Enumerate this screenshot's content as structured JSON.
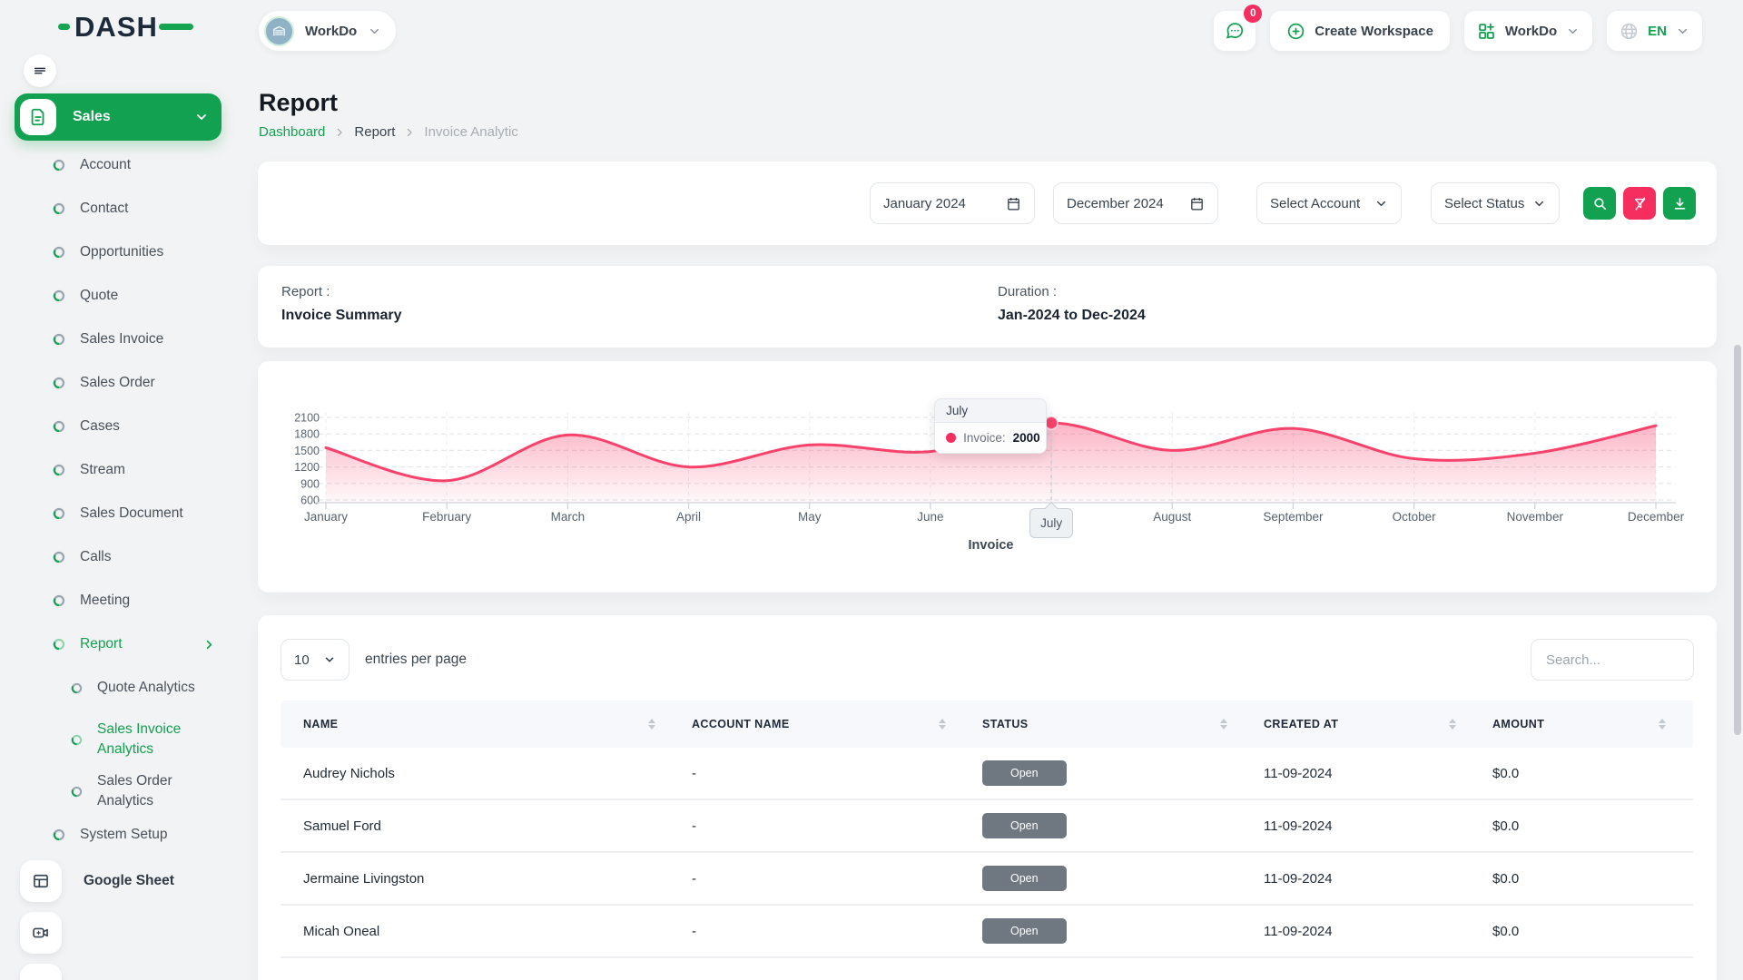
{
  "colors": {
    "primary_green": "#12A150",
    "accent_pink": "#F62E5F",
    "chart_line": "#F7426C",
    "badge_gray": "#6F7780"
  },
  "brand": {
    "name": "DASH"
  },
  "topbar": {
    "workspace_switcher_label": "WorkDo",
    "messages_badge": "0",
    "create_workspace_label": "Create Workspace",
    "workdo_menu_label": "WorkDo",
    "language_label": "EN"
  },
  "sidebar": {
    "group_label": "Sales",
    "items": [
      {
        "label": "Account"
      },
      {
        "label": "Contact"
      },
      {
        "label": "Opportunities"
      },
      {
        "label": "Quote"
      },
      {
        "label": "Sales Invoice"
      },
      {
        "label": "Sales Order"
      },
      {
        "label": "Cases"
      },
      {
        "label": "Stream"
      },
      {
        "label": "Sales Document"
      },
      {
        "label": "Calls"
      },
      {
        "label": "Meeting"
      }
    ],
    "report": {
      "label": "Report",
      "children": [
        {
          "label": "Quote Analytics"
        },
        {
          "label": "Sales Invoice Analytics"
        },
        {
          "label": "Sales Order Analytics"
        }
      ]
    },
    "system_setup_label": "System Setup",
    "footer_items": [
      {
        "label": "Google Sheet"
      },
      {
        "label": "Video Hub"
      }
    ]
  },
  "page": {
    "title": "Report",
    "breadcrumb": {
      "home": "Dashboard",
      "section": "Report",
      "current": "Invoice Analytic"
    }
  },
  "filters": {
    "start_month": "January 2024",
    "end_month": "December 2024",
    "account_select": "Select Account",
    "status_select": "Select Status"
  },
  "summary": {
    "report_label": "Report :",
    "report_value": "Invoice Summary",
    "duration_label": "Duration :",
    "duration_value": "Jan-2024 to Dec-2024"
  },
  "chart_data": {
    "type": "area",
    "title": "Invoice Summary",
    "x": [
      "January",
      "February",
      "March",
      "April",
      "May",
      "June",
      "July",
      "August",
      "September",
      "October",
      "November",
      "December"
    ],
    "series": [
      {
        "name": "Invoice",
        "values": [
          1550,
          950,
          1780,
          1200,
          1600,
          1480,
          2000,
          1500,
          1900,
          1350,
          1450,
          1950
        ]
      }
    ],
    "ylim": [
      600,
      2100
    ],
    "yticks": [
      600,
      900,
      1200,
      1500,
      1800,
      2100
    ],
    "grid": true,
    "legend_position": "none",
    "xlabel": "Invoice",
    "line_color": "#F7426C",
    "tooltip": {
      "index": 6,
      "month": "July",
      "series_label": "Invoice:",
      "value": "2000"
    }
  },
  "table": {
    "page_size": "10",
    "entries_label": "entries per page",
    "search_placeholder": "Search...",
    "columns": [
      "NAME",
      "ACCOUNT NAME",
      "STATUS",
      "CREATED AT",
      "AMOUNT"
    ],
    "rows": [
      {
        "name": "Audrey Nichols",
        "account": "-",
        "status": "Open",
        "created": "11-09-2024",
        "amount": "$0.0"
      },
      {
        "name": "Samuel Ford",
        "account": "-",
        "status": "Open",
        "created": "11-09-2024",
        "amount": "$0.0"
      },
      {
        "name": "Jermaine Livingston",
        "account": "-",
        "status": "Open",
        "created": "11-09-2024",
        "amount": "$0.0"
      },
      {
        "name": "Micah Oneal",
        "account": "-",
        "status": "Open",
        "created": "11-09-2024",
        "amount": "$0.0"
      }
    ]
  }
}
